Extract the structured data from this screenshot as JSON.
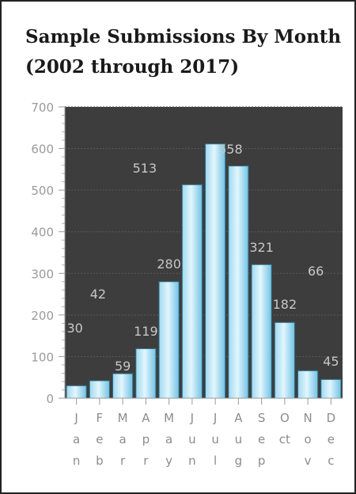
{
  "chart_data": {
    "type": "bar",
    "title": "Sample Submissions By Month",
    "subtitle": "(2002 through 2017)",
    "categories": [
      "Jan",
      "Feb",
      "Mar",
      "Apr",
      "May",
      "Jun",
      "Jul",
      "Aug",
      "Sep",
      "Oct",
      "Nov",
      "Dec"
    ],
    "category_labels": [
      [
        "J",
        "a",
        "n"
      ],
      [
        "F",
        "e",
        "b"
      ],
      [
        "M",
        "a",
        "r"
      ],
      [
        "A",
        "p",
        "r"
      ],
      [
        "M",
        "a",
        "y"
      ],
      [
        "J",
        "u",
        "n"
      ],
      [
        "J",
        "u",
        "l"
      ],
      [
        "A",
        "u",
        "g"
      ],
      [
        "S",
        "e",
        "p"
      ],
      [
        "O",
        "ct",
        ""
      ],
      [
        "N",
        "o",
        "v"
      ],
      [
        "D",
        "e",
        "c"
      ]
    ],
    "values": [
      30,
      42,
      59,
      119,
      280,
      513,
      611,
      558,
      321,
      182,
      66,
      45
    ],
    "data_labels": [
      "30",
      "42",
      "59",
      "119",
      "280",
      "513",
      "",
      "558",
      "321",
      "182",
      "66",
      "45"
    ],
    "xlabel": "",
    "ylabel": "",
    "ylim": [
      0,
      700
    ],
    "yticks": [
      0,
      100,
      200,
      300,
      400,
      500,
      600,
      700
    ],
    "grid": true,
    "legend": "none",
    "colors": {
      "plot_bg": "#3d3d3d",
      "grid": "#5a5a5a",
      "bar_light": "#d8f2fb",
      "bar_dark": "#7fcbe9",
      "bar_edge": "#2f6f8a"
    }
  }
}
